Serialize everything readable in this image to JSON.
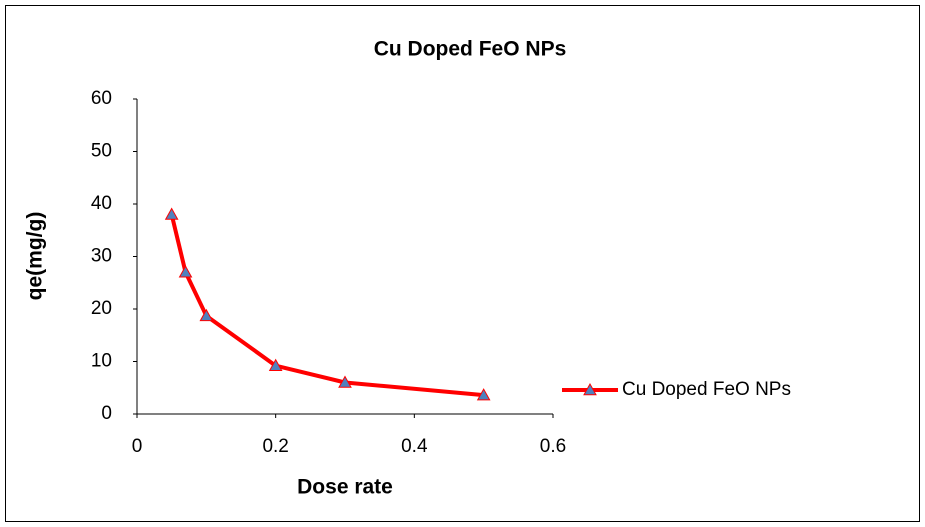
{
  "chart_data": {
    "type": "line",
    "title": "Cu Doped FeO NPs",
    "x_label": "Dose rate",
    "y_label": "qe(mg/g)",
    "x": [
      0.05,
      0.07,
      0.1,
      0.2,
      0.3,
      0.5
    ],
    "series": [
      {
        "name": "Cu Doped FeO NPs",
        "color": "#ff0000",
        "marker_color": "#4f81bd",
        "values": [
          38,
          27,
          18.7,
          9.2,
          6,
          3.6
        ]
      }
    ],
    "xlim": [
      0,
      0.6
    ],
    "xticks": [
      0,
      0.2,
      0.4,
      0.6
    ],
    "ylim": [
      0,
      60
    ],
    "yticks": [
      0,
      10,
      20,
      30,
      40,
      50,
      60
    ],
    "legend": "right"
  }
}
